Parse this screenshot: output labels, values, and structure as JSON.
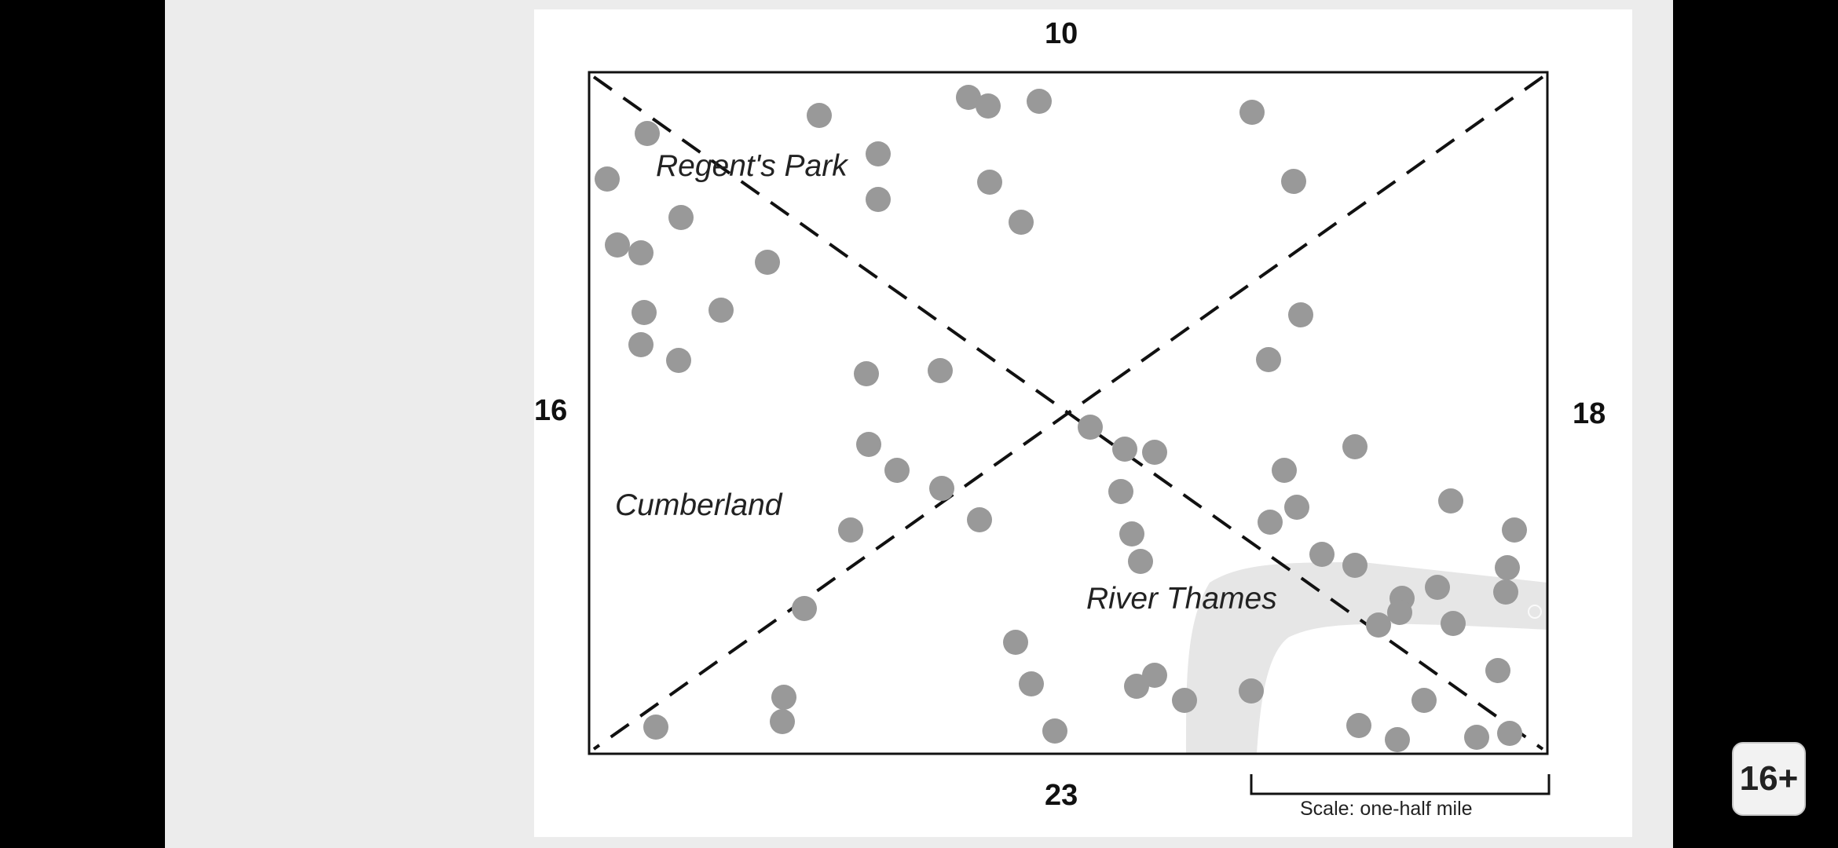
{
  "map": {
    "edge_labels": {
      "top": "10",
      "left": "16",
      "right": "18",
      "bottom": "23"
    },
    "places": {
      "regents_park": "Regent's Park",
      "cumberland": "Cumberland",
      "river_thames": "River Thames"
    },
    "scale_label": "Scale: one-half mile",
    "colors": {
      "frame": "#111111",
      "dots": "#999999",
      "river": "#e6e6e6",
      "dashes": "#111111"
    }
  },
  "overlay": {
    "rating_badge": "16+"
  }
}
